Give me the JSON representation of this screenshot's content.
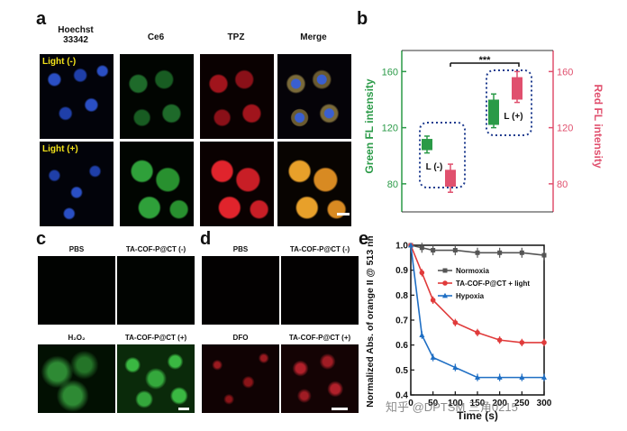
{
  "panel_a": {
    "letter": "a",
    "column_headers": [
      "Hoechst\n33342",
      "Ce6",
      "TPZ",
      "Merge"
    ],
    "row_labels": [
      "Light (-)",
      "Light (+)"
    ]
  },
  "panel_b": {
    "letter": "b",
    "left_axis_label": "Green FL intensity",
    "right_axis_label": "Red FL intensity",
    "left_ticks": [
      "160",
      "120",
      "80"
    ],
    "right_ticks": [
      "160",
      "120",
      "80"
    ],
    "significance": "***",
    "group_labels": [
      "L (-)",
      "L (+)"
    ],
    "colors": {
      "green": "#2a9a47",
      "red": "#e0506e",
      "dashed": "#1f3c8f"
    },
    "chart_data": {
      "type": "box",
      "ylim": [
        60,
        175
      ],
      "groups": [
        {
          "name": "L (-)",
          "green": {
            "low": 102,
            "q1": 104,
            "q3": 112,
            "high": 114
          },
          "red": {
            "low": 74,
            "q1": 78,
            "q3": 90,
            "high": 94
          }
        },
        {
          "name": "L (+)",
          "green": {
            "low": 120,
            "q1": 122,
            "q3": 140,
            "high": 144
          },
          "red": {
            "low": 138,
            "q1": 140,
            "q3": 156,
            "high": 160
          }
        }
      ]
    }
  },
  "panel_c": {
    "letter": "c",
    "headers": [
      "PBS",
      "TA-COF-P@CT (-)",
      "H₂O₂",
      "TA-COF-P@CT (+)"
    ]
  },
  "panel_d": {
    "letter": "d",
    "headers": [
      "PBS",
      "TA-COF-P@CT (-)",
      "DFO",
      "TA-COF-P@CT (+)"
    ]
  },
  "panel_e": {
    "letter": "e",
    "chart_data": {
      "type": "line",
      "title": "",
      "xlabel": "Time (s)",
      "ylabel": "Normalized Abs. of orange II @ 513 nm",
      "xlim": [
        0,
        300
      ],
      "ylim": [
        0.4,
        1.0
      ],
      "x_ticks": [
        "0",
        "50",
        "100",
        "150",
        "200",
        "250",
        "300"
      ],
      "y_ticks": [
        "1.0",
        "0.9",
        "0.8",
        "0.7",
        "0.6",
        "0.5",
        "0.4"
      ],
      "x": [
        0,
        25,
        50,
        100,
        150,
        200,
        250,
        300
      ],
      "series": [
        {
          "name": "Normoxia",
          "color": "#555555",
          "marker": "square",
          "values": [
            1.0,
            0.99,
            0.98,
            0.98,
            0.97,
            0.97,
            0.97,
            0.96
          ]
        },
        {
          "name": "TA-COF-P@CT + light",
          "color": "#e03b3b",
          "marker": "circle",
          "values": [
            1.0,
            0.89,
            0.78,
            0.69,
            0.65,
            0.62,
            0.61,
            0.61
          ]
        },
        {
          "name": "Hypoxia",
          "color": "#1f6fc4",
          "marker": "triangle",
          "values": [
            1.0,
            0.64,
            0.55,
            0.51,
            0.47,
            0.47,
            0.47,
            0.47
          ]
        }
      ]
    }
  },
  "watermark": "知乎 @DPTSM 三角0215"
}
